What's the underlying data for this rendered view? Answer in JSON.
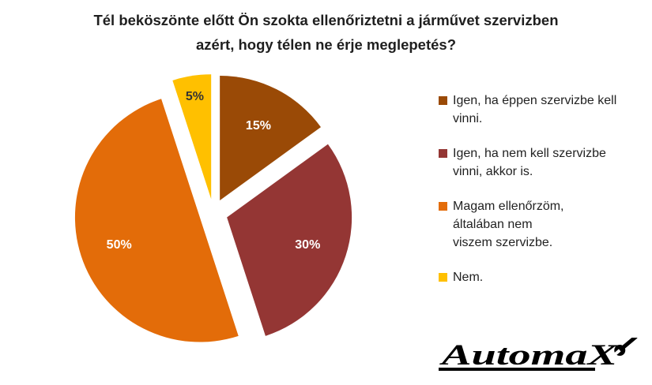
{
  "chart_data": {
    "type": "pie",
    "title_lines": [
      "Tél beköszönte előtt Ön szokta ellenőriztetni a járművet szervizben",
      "azért, hogy télen ne érje meglepetés?"
    ],
    "slices": [
      {
        "label": "Igen, ha éppen szervizbe kell vinni.",
        "legend_lines": [
          "Igen, ha éppen szervizbe kell",
          "vinni."
        ],
        "value": 15,
        "value_label": "15%",
        "color": "#9a4a06"
      },
      {
        "label": "Igen, ha nem kell szervizbe vinni, akkor is.",
        "legend_lines": [
          "Igen, ha nem kell szervizbe",
          "vinni, akkor is."
        ],
        "value": 30,
        "value_label": "30%",
        "color": "#943634"
      },
      {
        "label": "Magam ellenőrzöm, általában nem viszem szervizbe.",
        "legend_lines": [
          "Magam ellenőrzöm,",
          "általában nem",
          "viszem szervizbe."
        ],
        "value": 50,
        "value_label": "50%",
        "color": "#e36c09"
      },
      {
        "label": "Nem.",
        "legend_lines": [
          "Nem."
        ],
        "value": 5,
        "value_label": "5%",
        "color": "#ffc000"
      }
    ],
    "legend_position": "right",
    "exploded": true
  },
  "logo": {
    "text": "AutomaX"
  }
}
